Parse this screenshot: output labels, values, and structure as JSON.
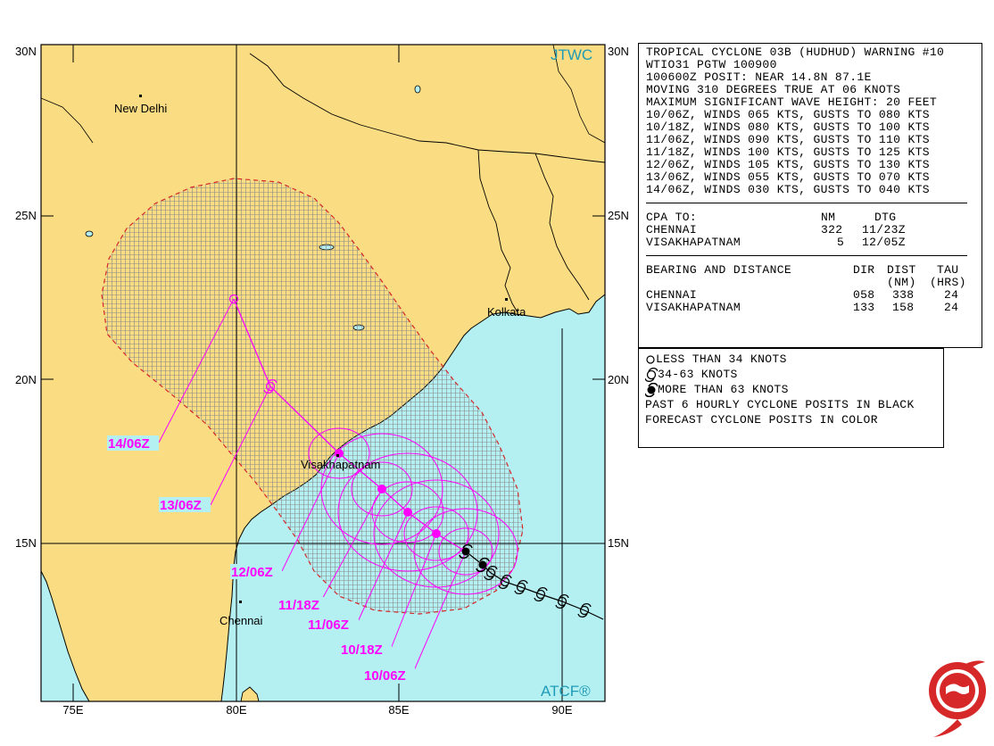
{
  "map": {
    "brand_top": "JTWC",
    "brand_bottom": "ATCF®",
    "lat_labels": [
      "30N",
      "25N",
      "20N",
      "15N"
    ],
    "lon_labels": [
      "75E",
      "80E",
      "85E",
      "90E"
    ],
    "cities": [
      "New Delhi",
      "Kolkata",
      "Visakhapatnam",
      "Chennai"
    ],
    "forecast_labels": [
      "14/06Z",
      "13/06Z",
      "12/06Z",
      "11/18Z",
      "11/06Z",
      "10/18Z",
      "10/06Z"
    ],
    "colors": {
      "land": "#fadc82",
      "ocean": "#b4f0f2",
      "forecast": "#ff00ff",
      "danger": "#d62828",
      "label_bg": "#b4f0f2"
    }
  },
  "warning": {
    "lines": [
      "TROPICAL CYCLONE 03B (HUDHUD) WARNING #10",
      "WTIO31 PGTW 100900",
      "100600Z POSIT: NEAR 14.8N 87.1E",
      "MOVING 310 DEGREES TRUE AT 06 KNOTS",
      "MAXIMUM SIGNIFICANT WAVE HEIGHT: 20 FEET",
      "10/06Z, WINDS 065 KTS, GUSTS TO 080 KTS",
      "10/18Z, WINDS 080 KTS, GUSTS TO 100 KTS",
      "11/06Z, WINDS 090 KTS, GUSTS TO 110 KTS",
      "11/18Z, WINDS 100 KTS, GUSTS TO 125 KTS",
      "12/06Z, WINDS 105 KTS, GUSTS TO 130 KTS",
      "13/06Z, WINDS 055 KTS, GUSTS TO 070 KTS",
      "14/06Z, WINDS 030 KTS, GUSTS TO 040 KTS"
    ],
    "cpa": {
      "title": "CPA TO:",
      "nm_header": "NM",
      "dtg_header": "DTG",
      "rows": [
        {
          "place": "CHENNAI",
          "nm": "322",
          "dtg": "11/23Z"
        },
        {
          "place": "VISAKHAPATNAM",
          "nm": "5",
          "dtg": "12/05Z"
        }
      ]
    },
    "bearing": {
      "title": "BEARING AND DISTANCE",
      "dir_header": "DIR",
      "dist_header": "DIST",
      "dist_unit": "(NM)",
      "tau_header": "TAU",
      "tau_unit": "(HRS)",
      "rows": [
        {
          "place": "CHENNAI",
          "dir": "058",
          "dist": "338",
          "tau": "24"
        },
        {
          "place": "VISAKHAPATNAM",
          "dir": "133",
          "dist": "158",
          "tau": "24"
        }
      ]
    }
  },
  "legend": {
    "less_34": "LESS THAN 34 KNOTS",
    "kt_34_63": "34-63 KNOTS",
    "more_63": "MORE THAN 63 KNOTS",
    "note1": "PAST 6 HOURLY CYCLONE POSITS IN BLACK",
    "note2": "FORECAST CYCLONE POSITS IN COLOR"
  }
}
